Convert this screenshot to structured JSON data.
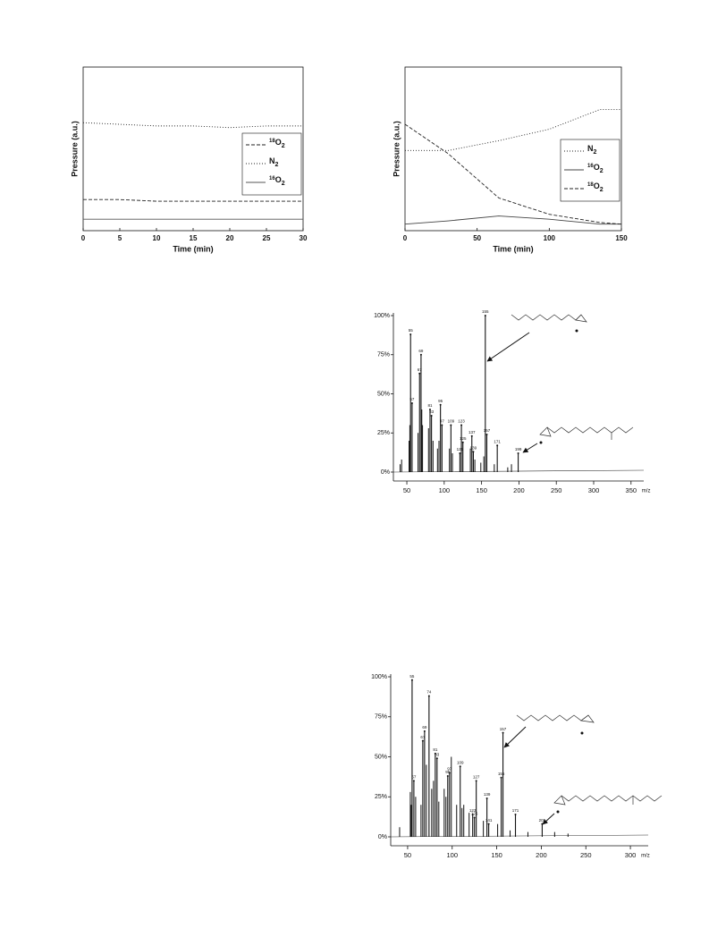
{
  "chart_data": [
    {
      "type": "line",
      "xlabel": "Time (min)",
      "ylabel": "Pressure (a.u.)",
      "x": [
        0,
        5,
        10,
        15,
        20,
        25,
        30
      ],
      "xlim": [
        0,
        30
      ],
      "xticks": [
        0,
        5,
        10,
        15,
        20,
        25,
        30
      ],
      "ylim": [
        0,
        1
      ],
      "legend": "center right",
      "series": [
        {
          "name": "18O2",
          "linestyle": "dashed",
          "color": "#222",
          "values": [
            0.19,
            0.19,
            0.18,
            0.18,
            0.18,
            0.18,
            0.18
          ]
        },
        {
          "name": "N2",
          "linestyle": "dotted",
          "color": "#222",
          "values": [
            0.66,
            0.65,
            0.64,
            0.64,
            0.63,
            0.64,
            0.64
          ]
        },
        {
          "name": "16O2",
          "linestyle": "solid",
          "color": "#555",
          "values": [
            0.07,
            0.07,
            0.07,
            0.07,
            0.07,
            0.07,
            0.07
          ]
        }
      ]
    },
    {
      "type": "line",
      "xlabel": "Time (min)",
      "ylabel": "Pressure (a.u.)",
      "x": [
        0,
        30,
        65,
        100,
        135,
        150
      ],
      "xlim": [
        0,
        150
      ],
      "xticks": [
        0,
        50,
        100,
        150
      ],
      "ylim": [
        0,
        1
      ],
      "legend": "lower right",
      "series": [
        {
          "name": "N2",
          "linestyle": "dotted",
          "color": "#222",
          "values": [
            0.49,
            0.49,
            0.55,
            0.62,
            0.74,
            0.74
          ]
        },
        {
          "name": "16O2",
          "linestyle": "solid",
          "color": "#444",
          "values": [
            0.04,
            0.06,
            0.09,
            0.07,
            0.04,
            0.04
          ]
        },
        {
          "name": "18O2",
          "linestyle": "dashed",
          "color": "#222",
          "values": [
            0.65,
            0.47,
            0.2,
            0.1,
            0.05,
            0.04
          ]
        }
      ]
    },
    {
      "type": "stem",
      "xlabel": "m/z",
      "xlim": [
        32,
        367
      ],
      "xticks": [
        50,
        100,
        150,
        200,
        250,
        300,
        350
      ],
      "ylim": [
        0,
        100
      ],
      "yticks": [
        {
          "value": 0,
          "label": "0%"
        },
        {
          "value": 25,
          "label": "25%"
        },
        {
          "value": 50,
          "label": "50%"
        },
        {
          "value": 75,
          "label": "75%"
        },
        {
          "value": 100,
          "label": "100%"
        }
      ],
      "color": "#111",
      "peaks": {
        "x": [
          55,
          57,
          67,
          69,
          81,
          83,
          95,
          97,
          109,
          121,
          123,
          125,
          137,
          139,
          155,
          157,
          171,
          199
        ],
        "values": [
          88,
          44,
          63,
          75,
          40,
          36,
          43,
          30,
          30,
          12,
          30,
          19,
          23,
          13,
          100,
          24,
          17,
          12
        ]
      },
      "minor_peaks": {
        "x": [
          41,
          43,
          53,
          54,
          65,
          70,
          71,
          79,
          85,
          91,
          93,
          107,
          111,
          135,
          141,
          149,
          153,
          167,
          185,
          190
        ],
        "values": [
          5,
          8,
          20,
          30,
          25,
          40,
          30,
          28,
          20,
          15,
          20,
          15,
          12,
          15,
          8,
          6,
          10,
          5,
          3,
          5
        ]
      }
    },
    {
      "type": "stem",
      "xlabel": "m/z",
      "xlim": [
        31,
        320
      ],
      "xticks": [
        50,
        100,
        150,
        200,
        250,
        300
      ],
      "ylim": [
        0,
        100
      ],
      "yticks": [
        {
          "value": 0,
          "label": "0%"
        },
        {
          "value": 25,
          "label": "25%"
        },
        {
          "value": 50,
          "label": "50%"
        },
        {
          "value": 75,
          "label": "75%"
        },
        {
          "value": 100,
          "label": "100%"
        }
      ],
      "color": "#111",
      "peaks": {
        "x": [
          55,
          57,
          67,
          69,
          74,
          81,
          83,
          95,
          97,
          109,
          123,
          125,
          127,
          139,
          141,
          155,
          157,
          171,
          201
        ],
        "values": [
          98,
          35,
          60,
          66,
          88,
          52,
          49,
          38,
          40,
          44,
          14,
          12,
          35,
          24,
          8,
          37,
          65,
          14,
          8
        ]
      },
      "minor_peaks": {
        "x": [
          41,
          53,
          54,
          59,
          65,
          71,
          77,
          79,
          85,
          91,
          93,
          99,
          105,
          111,
          113,
          119,
          135,
          151,
          165,
          185,
          215,
          230
        ],
        "values": [
          6,
          28,
          20,
          25,
          20,
          45,
          30,
          35,
          22,
          30,
          25,
          50,
          20,
          18,
          20,
          15,
          10,
          8,
          4,
          3,
          3,
          2
        ]
      }
    }
  ]
}
